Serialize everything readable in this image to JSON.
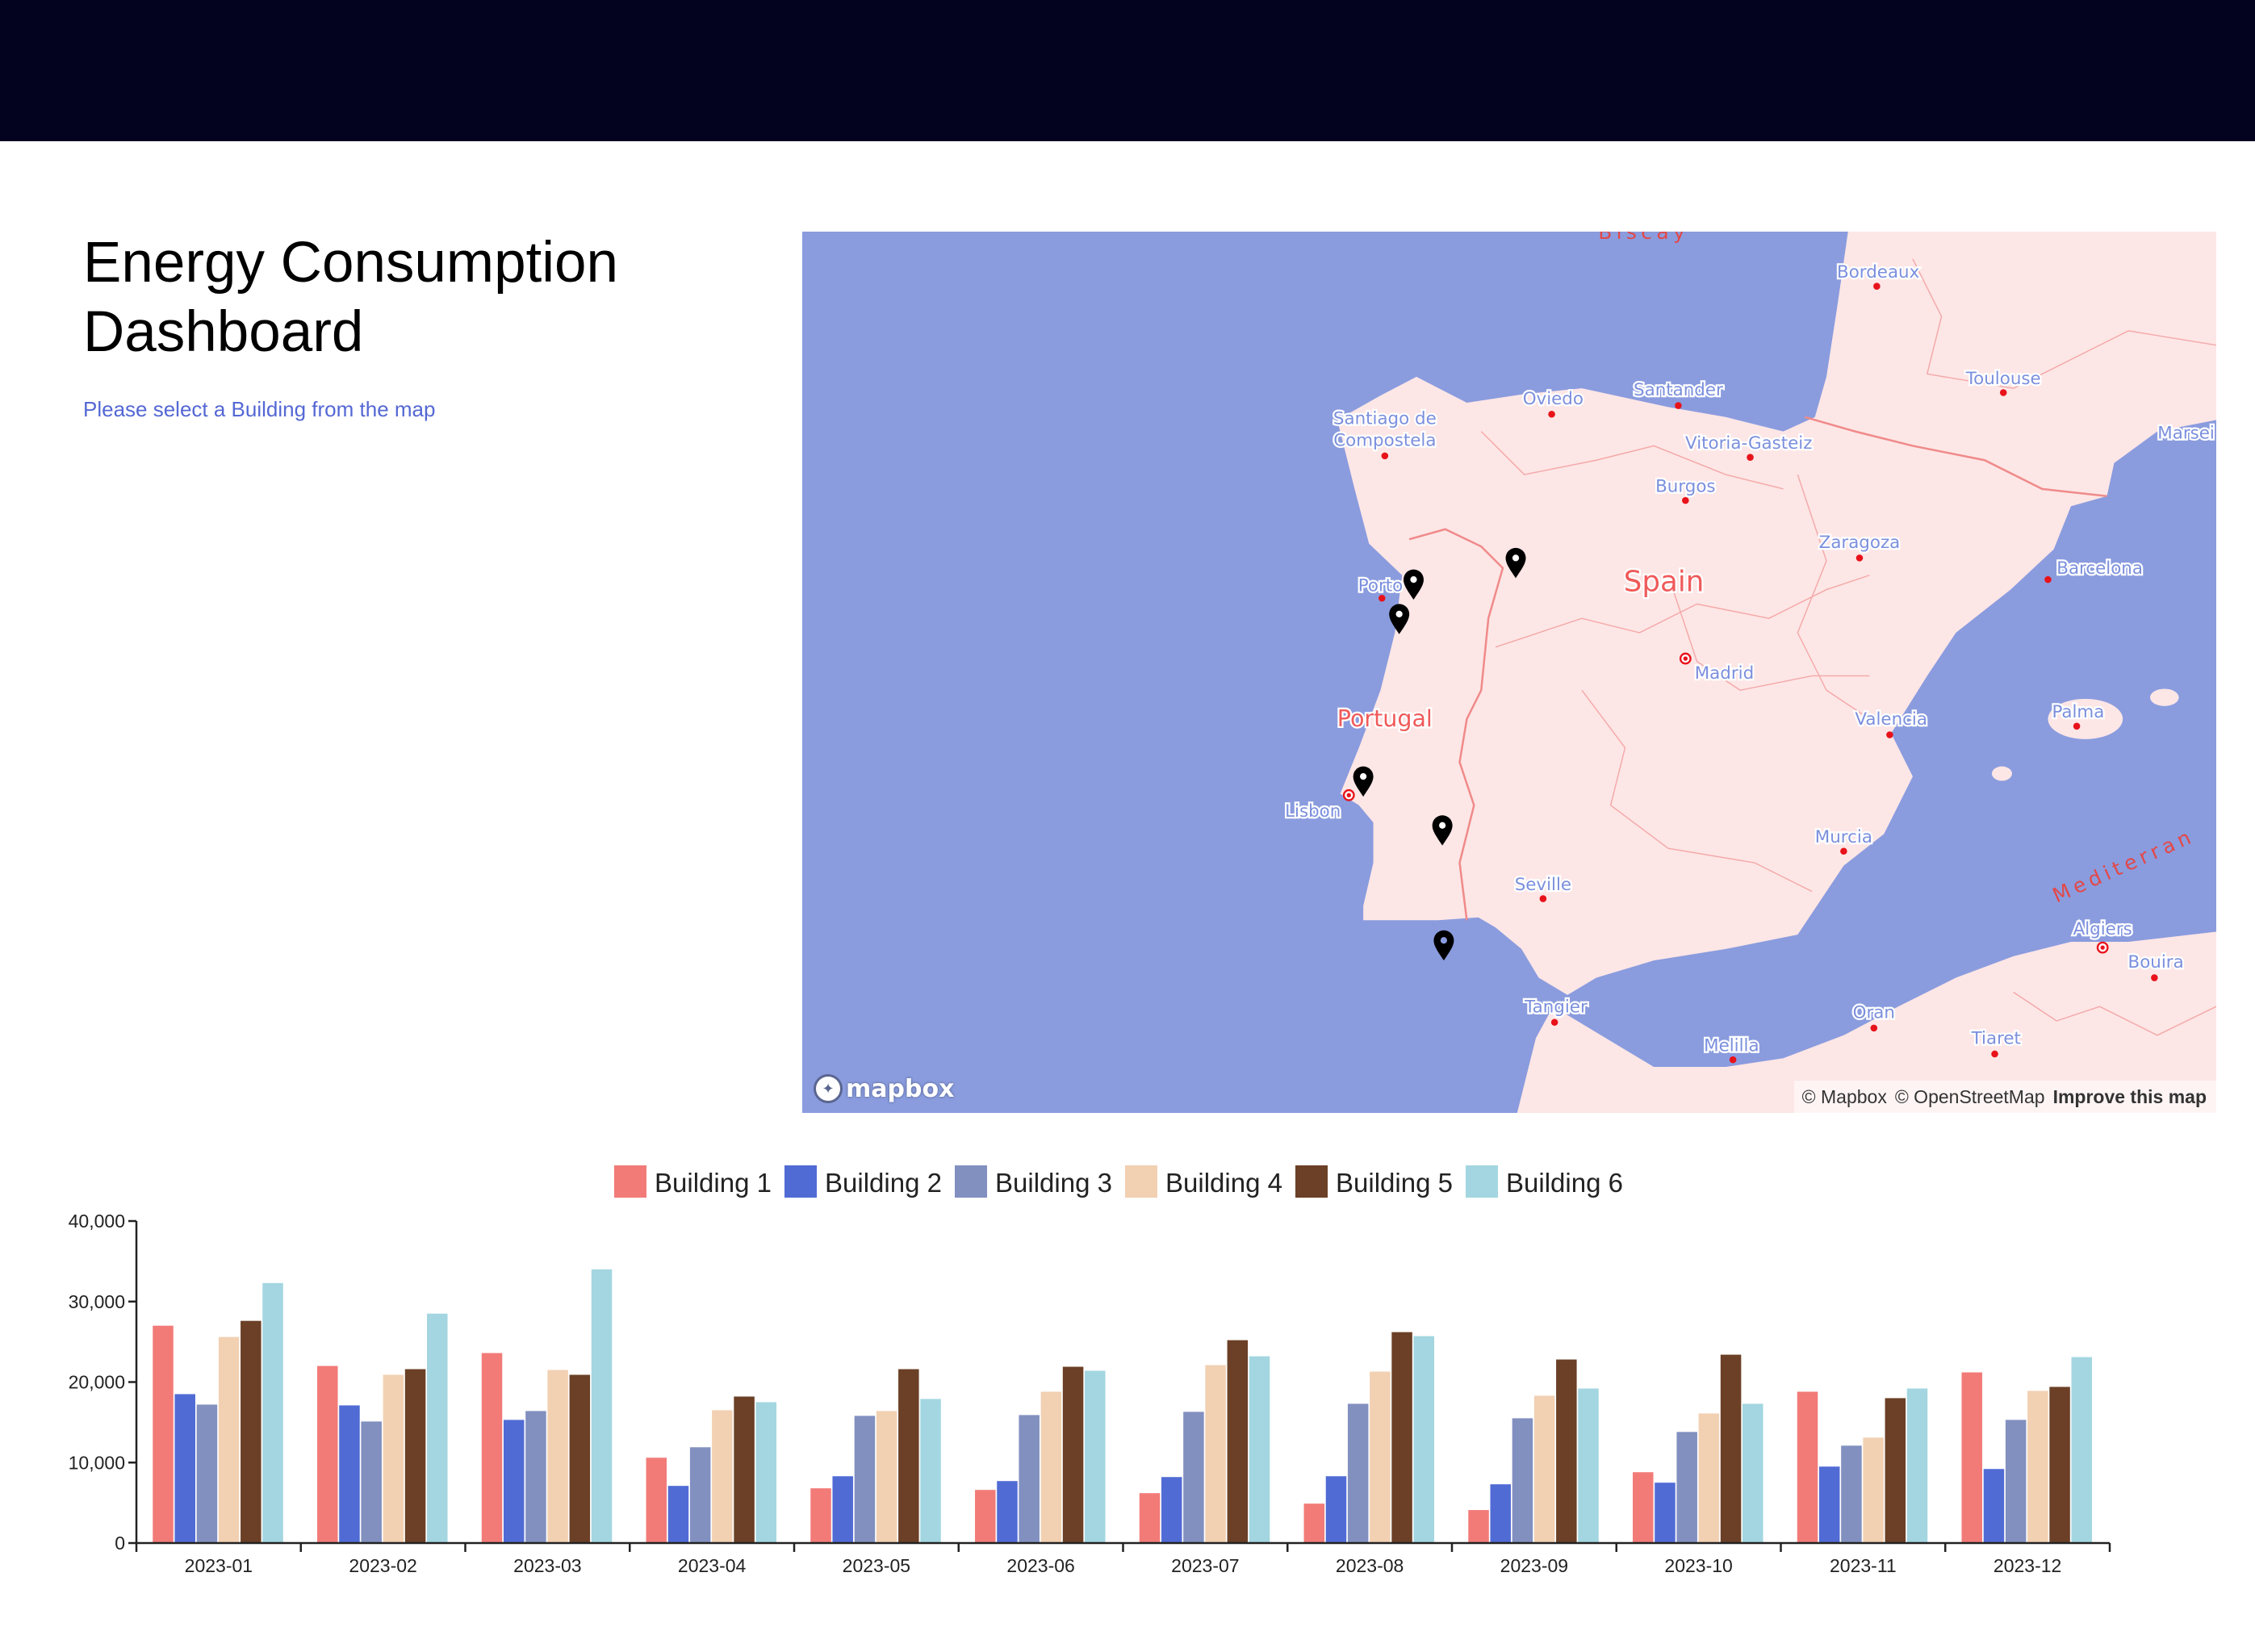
{
  "header": {
    "background": "#03031f"
  },
  "title": "Energy Consumption Dashboard",
  "subtitle": "Please select a Building from the map",
  "map": {
    "water_color": "#8a9cde",
    "land_color": "#fde6e6",
    "countries": [
      "Spain",
      "Portugal"
    ],
    "seas": [
      "Biscay",
      "Mediterran"
    ],
    "cities": [
      "Bordeaux",
      "Toulouse",
      "Marsei",
      "Oviedo",
      "Santander",
      "Santiago de",
      "Compostela",
      "Vitoria-Gasteiz",
      "Burgos",
      "Zaragoza",
      "Barcelona",
      "Porto",
      "Madrid",
      "Valencia",
      "Palma",
      "Lisbon",
      "Murcia",
      "Seville",
      "Algiers",
      "Bouira",
      "Tangier",
      "Oran",
      "Melilla",
      "Tiaret"
    ],
    "markers_count": 6,
    "logo": "mapbox",
    "attribution": {
      "mapbox": "© Mapbox",
      "osm": "© OpenStreetMap",
      "improve": "Improve this map"
    }
  },
  "chart_data": {
    "type": "bar",
    "categories": [
      "2023-01",
      "2023-02",
      "2023-03",
      "2023-04",
      "2023-05",
      "2023-06",
      "2023-07",
      "2023-08",
      "2023-09",
      "2023-10",
      "2023-11",
      "2023-12"
    ],
    "ylim": [
      0,
      40000
    ],
    "yticks": [
      "0",
      "10,000",
      "20,000",
      "30,000",
      "40,000"
    ],
    "ytick_values": [
      0,
      10000,
      20000,
      30000,
      40000
    ],
    "grid": false,
    "legend_placement": "top-center",
    "series": [
      {
        "name": "Building 1",
        "color": "#f27b78",
        "values": [
          27000,
          22000,
          23600,
          10600,
          6800,
          6600,
          6200,
          4900,
          4100,
          8800,
          18800,
          21200
        ]
      },
      {
        "name": "Building 2",
        "color": "#516bd5",
        "values": [
          18500,
          17100,
          15300,
          7100,
          8300,
          7700,
          8200,
          8300,
          7300,
          7500,
          9500,
          9200
        ]
      },
      {
        "name": "Building 3",
        "color": "#8290c0",
        "values": [
          17200,
          15100,
          16400,
          11900,
          15800,
          15900,
          16300,
          17300,
          15500,
          13800,
          12100,
          15300
        ]
      },
      {
        "name": "Building 4",
        "color": "#f2d0b2",
        "values": [
          25600,
          20900,
          21500,
          16500,
          16400,
          18800,
          22100,
          21300,
          18300,
          16100,
          13100,
          18900
        ]
      },
      {
        "name": "Building 5",
        "color": "#6b4026",
        "values": [
          27600,
          21600,
          20900,
          18200,
          21600,
          21900,
          25200,
          26200,
          22800,
          23400,
          18000,
          19400
        ]
      },
      {
        "name": "Building 6",
        "color": "#a3d6e0",
        "values": [
          32300,
          28500,
          34000,
          17500,
          17900,
          21400,
          23200,
          25700,
          19200,
          17300,
          19200,
          23100
        ]
      }
    ]
  }
}
